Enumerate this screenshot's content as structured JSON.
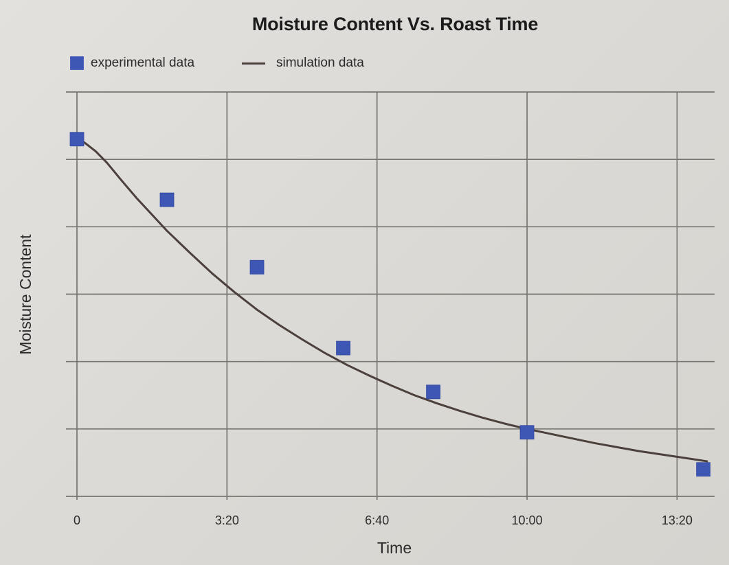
{
  "chart_data": {
    "type": "scatter",
    "title": "Moisture Content Vs. Roast Time",
    "xlabel": "Time",
    "ylabel": "Moisture Content",
    "x_ticks": [
      {
        "value": 0,
        "label": "0"
      },
      {
        "value": 200,
        "label": "3:20"
      },
      {
        "value": 400,
        "label": "6:40"
      },
      {
        "value": 600,
        "label": "10:00"
      },
      {
        "value": 800,
        "label": "13:20"
      }
    ],
    "xlim": [
      0,
      850
    ],
    "ylim": [
      0,
      6
    ],
    "grid": true,
    "legend_position": "top-left",
    "series": [
      {
        "name": "experimental data",
        "type": "scatter",
        "color": "#3f57b4",
        "x": [
          0,
          120,
          240,
          355,
          475,
          600,
          835
        ],
        "y": [
          5.3,
          4.4,
          3.4,
          2.2,
          1.55,
          0.95,
          0.4
        ]
      },
      {
        "name": "simulation data",
        "type": "line",
        "color": "#4b403b",
        "x": [
          0,
          10,
          25,
          40,
          60,
          80,
          100,
          120,
          150,
          180,
          210,
          240,
          270,
          300,
          330,
          360,
          390,
          420,
          450,
          480,
          510,
          540,
          570,
          600,
          630,
          660,
          690,
          720,
          750,
          780,
          810,
          840
        ],
        "y": [
          5.3,
          5.25,
          5.12,
          4.95,
          4.68,
          4.42,
          4.18,
          3.94,
          3.62,
          3.31,
          3.03,
          2.77,
          2.54,
          2.33,
          2.13,
          1.95,
          1.79,
          1.64,
          1.5,
          1.38,
          1.27,
          1.17,
          1.08,
          1.0,
          0.93,
          0.86,
          0.79,
          0.73,
          0.67,
          0.62,
          0.57,
          0.52
        ]
      }
    ]
  }
}
